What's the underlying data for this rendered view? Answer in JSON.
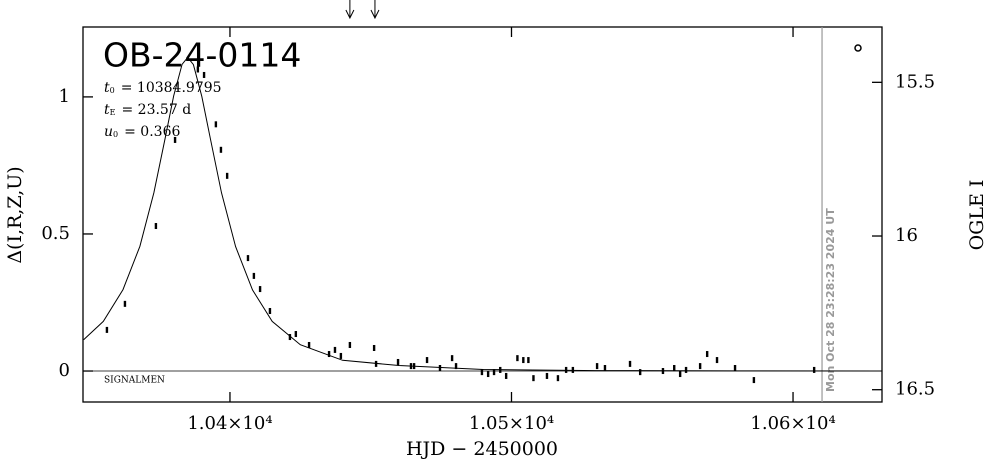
{
  "chart_data": {
    "type": "scatter",
    "title": "OB-24-0114",
    "params": [
      {
        "symbol": "t",
        "sub": "0",
        "text": "= 10384.9795"
      },
      {
        "symbol": "t",
        "sub": "E",
        "text": "= 23.57 d"
      },
      {
        "symbol": "u",
        "sub": "0",
        "text": "= 0.366"
      }
    ],
    "note": "SIGNALMEN",
    "xlabel": "HJD − 2450000",
    "ylabel": "Δ(I,R,Z,U)",
    "y2label": "OGLE I",
    "xlim": [
      10347.8,
      10631.6
    ],
    "xticks": [
      {
        "value": 10400,
        "label": "1.04×10⁴"
      },
      {
        "value": 10500,
        "label": "1.05×10⁴"
      },
      {
        "value": 10600,
        "label": "1.06×10⁴"
      }
    ],
    "ylim": [
      -0.113,
      1.255
    ],
    "yticks": [
      0,
      0.5,
      1
    ],
    "y2lim": [
      16.54,
      15.32
    ],
    "y2ticks": [
      15.5,
      16,
      16.5
    ],
    "now_line": {
      "x": 10610.3,
      "label": "Mon Oct 28 23:28:23 2024 UT"
    },
    "arrows_x": [
      10442.6,
      10451.5
    ],
    "data": {
      "x": [
        10356.3,
        10362.7,
        10373.7,
        10380.5,
        10388.6,
        10390.8,
        10395.0,
        10396.8,
        10399.0,
        10406.4,
        10408.5,
        10410.7,
        10414.2,
        10421.3,
        10423.4,
        10428.1,
        10435.2,
        10437.3,
        10439.4,
        10442.6,
        10451.2,
        10451.9,
        10459.7,
        10464.3,
        10465.4,
        10470.0,
        10474.6,
        10478.9,
        10480.3,
        10489.5,
        10491.7,
        10493.8,
        10496.0,
        10498.1,
        10502.1,
        10504.2,
        10506.0,
        10507.8,
        10512.6,
        10516.5,
        10519.4,
        10521.8,
        10530.4,
        10533.2,
        10542.1,
        10545.7,
        10553.8,
        10557.8,
        10559.9,
        10562.0,
        10567.0,
        10569.5,
        10573.0,
        10579.4,
        10586.1,
        10607.5
      ],
      "values": [
        0.15,
        0.245,
        0.529,
        0.843,
        1.1,
        1.08,
        0.9,
        0.807,
        0.712,
        0.412,
        0.347,
        0.299,
        0.219,
        0.124,
        0.135,
        0.095,
        0.062,
        0.077,
        0.055,
        0.095,
        0.084,
        0.026,
        0.033,
        0.018,
        0.018,
        0.04,
        0.011,
        0.047,
        0.018,
        -0.004,
        -0.011,
        -0.004,
        0.004,
        -0.018,
        0.047,
        0.04,
        0.04,
        -0.026,
        -0.018,
        -0.026,
        0.004,
        0.004,
        0.018,
        0.011,
        0.026,
        -0.004,
        0.0,
        0.011,
        -0.011,
        0.004,
        0.018,
        0.062,
        0.04,
        0.011,
        -0.033,
        0.004
      ]
    },
    "model": {
      "x": [
        10348,
        10355,
        10362,
        10368,
        10373,
        10377,
        10380,
        10383,
        10385,
        10387,
        10390,
        10393,
        10397,
        10402,
        10408,
        10415,
        10425,
        10440,
        10460,
        10490,
        10530,
        10580,
        10631.6
      ],
      "values": [
        0.114,
        0.181,
        0.297,
        0.455,
        0.651,
        0.85,
        1.004,
        1.119,
        1.144,
        1.118,
        1.002,
        0.849,
        0.65,
        0.454,
        0.296,
        0.181,
        0.096,
        0.039,
        0.02,
        0.0054,
        0.0015,
        0.0005,
        0.0002
      ]
    }
  }
}
